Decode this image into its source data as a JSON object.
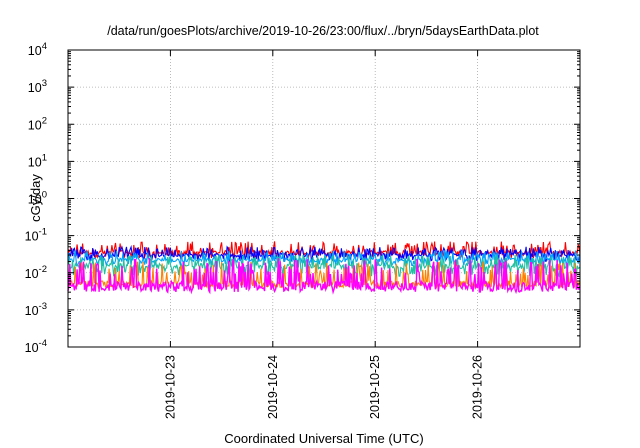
{
  "chart_data": {
    "type": "line",
    "title": "/data/run/goesPlots/archive/2019-10-26/23:00/flux/../bryn/5daysEarthData.plot",
    "xlabel": "Coordinated Universal Time (UTC)",
    "ylabel": "cGy/day",
    "yscale": "log",
    "ylim": [
      0.0001,
      10000
    ],
    "xlim": [
      "2019-10-22T00:00Z",
      "2019-10-27T00:00Z"
    ],
    "grid": true,
    "legend": "none",
    "x_ticks": [
      "2019-10-23",
      "2019-10-24",
      "2019-10-25",
      "2019-10-26"
    ],
    "y_ticks": [
      {
        "base": "10",
        "exp": "-4"
      },
      {
        "base": "10",
        "exp": "-3"
      },
      {
        "base": "10",
        "exp": "-2"
      },
      {
        "base": "10",
        "exp": "-1"
      },
      {
        "base": "10",
        "exp": "0"
      },
      {
        "base": "10",
        "exp": "1"
      },
      {
        "base": "10",
        "exp": "2"
      },
      {
        "base": "10",
        "exp": "3"
      },
      {
        "base": "10",
        "exp": "4"
      }
    ],
    "series": [
      {
        "color": "#ff0000",
        "typical": 0.035,
        "low": 0.025,
        "high": 0.07
      },
      {
        "color": "#0000ff",
        "typical": 0.03,
        "low": 0.02,
        "high": 0.05
      },
      {
        "color": "#00a0ff",
        "typical": 0.022,
        "low": 0.015,
        "high": 0.04
      },
      {
        "color": "#20c0a0",
        "typical": 0.015,
        "low": 0.008,
        "high": 0.03
      },
      {
        "color": "#ff8000",
        "typical": 0.005,
        "low": 0.004,
        "high": 0.02
      },
      {
        "color": "#ff00ff",
        "typical": 0.0045,
        "low": 0.003,
        "high": 0.025
      }
    ]
  }
}
